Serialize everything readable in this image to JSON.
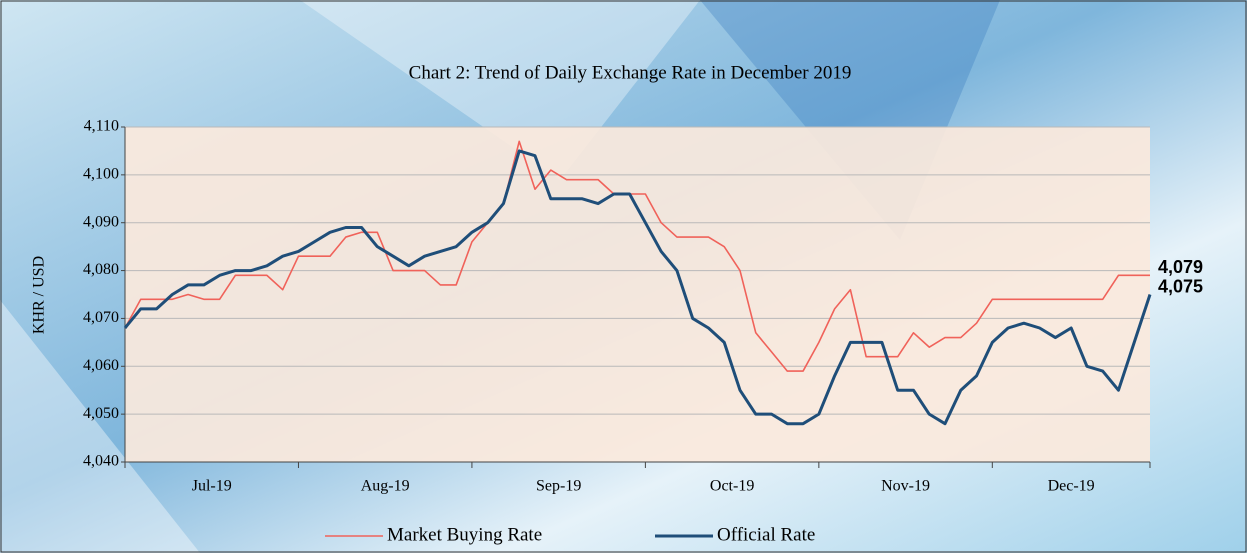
{
  "chart_data": {
    "type": "line",
    "title": "Chart 2: Trend of Daily Exchange Rate in December 2019",
    "y_label": "KHR / USD",
    "categories": [
      "Jul-19",
      null,
      null,
      null,
      null,
      null,
      null,
      null,
      null,
      null,
      null,
      "Aug-19",
      null,
      null,
      null,
      null,
      null,
      null,
      null,
      null,
      null,
      null,
      "Sep-19",
      null,
      null,
      null,
      null,
      null,
      null,
      null,
      null,
      null,
      null,
      "Oct-19",
      null,
      null,
      null,
      null,
      null,
      null,
      null,
      null,
      null,
      null,
      "Nov-19",
      null,
      null,
      null,
      null,
      null,
      null,
      null,
      null,
      null,
      null,
      "Dec-19",
      null,
      null,
      null,
      null,
      null,
      null,
      null,
      null,
      null,
      null
    ],
    "series": [
      {
        "name": "Market Buying Rate",
        "color": "#f0625a",
        "width": 1.6,
        "values": [
          4068,
          4074,
          4074,
          4074,
          4075,
          4074,
          4074,
          4079,
          4079,
          4079,
          4076,
          4083,
          4083,
          4083,
          4087,
          4088,
          4088,
          4080,
          4080,
          4080,
          4077,
          4077,
          4086,
          4090,
          4094,
          4107,
          4097,
          4101,
          4099,
          4099,
          4099,
          4096,
          4096,
          4096,
          4090,
          4087,
          4087,
          4087,
          4085,
          4080,
          4067,
          4063,
          4059,
          4059,
          4065,
          4072,
          4076,
          4062,
          4062,
          4062,
          4067,
          4064,
          4066,
          4066,
          4069,
          4074,
          4074,
          4074,
          4074,
          4074,
          4074,
          4074,
          4074,
          4079,
          4079,
          4079
        ],
        "value_labels": [
          null,
          null,
          null,
          null,
          null,
          null,
          null,
          null,
          null,
          null,
          null,
          null,
          null,
          null,
          null,
          null,
          null,
          null,
          null,
          null,
          null,
          null,
          null,
          null,
          null,
          null,
          null,
          null,
          null,
          null,
          null,
          null,
          null,
          null,
          null,
          null,
          null,
          null,
          null,
          null,
          null,
          null,
          null,
          null,
          null,
          null,
          null,
          null,
          null,
          null,
          null,
          null,
          null,
          null,
          null,
          null,
          null,
          null,
          null,
          null,
          null,
          null,
          null,
          null,
          null,
          "4,079"
        ]
      },
      {
        "name": "Official Rate",
        "color": "#1f4e79",
        "width": 3,
        "values": [
          4068,
          4072,
          4072,
          4075,
          4077,
          4077,
          4079,
          4080,
          4080,
          4081,
          4083,
          4084,
          4086,
          4088,
          4089,
          4089,
          4085,
          4083,
          4081,
          4083,
          4084,
          4085,
          4088,
          4090,
          4094,
          4105,
          4104,
          4095,
          4095,
          4095,
          4094,
          4096,
          4096,
          4090,
          4084,
          4080,
          4070,
          4068,
          4065,
          4055,
          4050,
          4050,
          4048,
          4048,
          4050,
          4058,
          4065,
          4065,
          4065,
          4055,
          4055,
          4050,
          4048,
          4055,
          4058,
          4065,
          4068,
          4069,
          4068,
          4066,
          4068,
          4060,
          4059,
          4055,
          4065,
          4075
        ],
        "value_labels": [
          null,
          null,
          null,
          null,
          null,
          null,
          null,
          null,
          null,
          null,
          null,
          null,
          null,
          null,
          null,
          null,
          null,
          null,
          null,
          null,
          null,
          null,
          null,
          null,
          null,
          null,
          null,
          null,
          null,
          null,
          null,
          null,
          null,
          null,
          null,
          null,
          null,
          null,
          null,
          null,
          null,
          null,
          null,
          null,
          null,
          null,
          null,
          null,
          null,
          null,
          null,
          null,
          null,
          null,
          null,
          null,
          null,
          null,
          null,
          null,
          null,
          null,
          null,
          null,
          null,
          "4,075"
        ]
      }
    ],
    "ylim": [
      4040,
      4110
    ],
    "yticks": [
      {
        "value": 4040,
        "label": "4,040"
      },
      {
        "value": 4050,
        "label": "4,050"
      },
      {
        "value": 4060,
        "label": "4,060"
      },
      {
        "value": 4070,
        "label": "4,070"
      },
      {
        "value": 4080,
        "label": "4,080"
      },
      {
        "value": 4090,
        "label": "4,090"
      },
      {
        "value": 4100,
        "label": "4,100"
      },
      {
        "value": 4110,
        "label": "4,110"
      }
    ],
    "grid": true,
    "legend": "bottom"
  }
}
